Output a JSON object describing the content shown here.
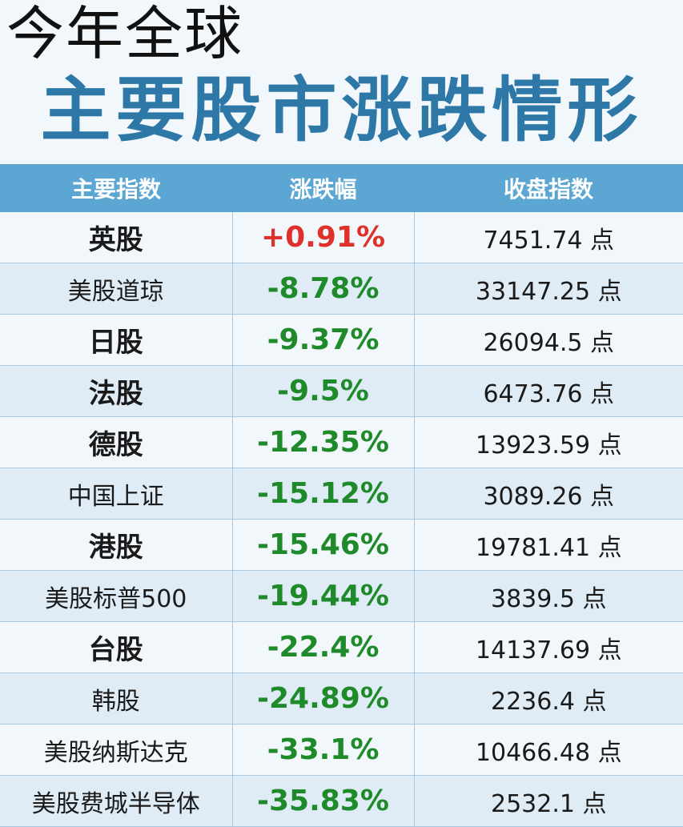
{
  "title": {
    "line1": "今年全球",
    "line2": "主要股市涨跌情形"
  },
  "table": {
    "headers": [
      "主要指数",
      "涨跌幅",
      "收盘指数"
    ],
    "rows": [
      {
        "name": "英股",
        "change": "+0.91%",
        "close": "7451.74 点",
        "direction": "up",
        "emphasis": true
      },
      {
        "name": "美股道琼",
        "change": "-8.78%",
        "close": "33147.25 点",
        "direction": "down",
        "emphasis": false
      },
      {
        "name": "日股",
        "change": "-9.37%",
        "close": "26094.5 点",
        "direction": "down",
        "emphasis": true
      },
      {
        "name": "法股",
        "change": "-9.5%",
        "close": "6473.76 点",
        "direction": "down",
        "emphasis": true
      },
      {
        "name": "德股",
        "change": "-12.35%",
        "close": "13923.59 点",
        "direction": "down",
        "emphasis": true
      },
      {
        "name": "中国上证",
        "change": "-15.12%",
        "close": "3089.26 点",
        "direction": "down",
        "emphasis": false
      },
      {
        "name": "港股",
        "change": "-15.46%",
        "close": "19781.41 点",
        "direction": "down",
        "emphasis": true
      },
      {
        "name": "美股标普500",
        "change": "-19.44%",
        "close": "3839.5 点",
        "direction": "down",
        "emphasis": false
      },
      {
        "name": "台股",
        "change": "-22.4%",
        "close": "14137.69 点",
        "direction": "down",
        "emphasis": true
      },
      {
        "name": "韩股",
        "change": "-24.89%",
        "close": "2236.4 点",
        "direction": "down",
        "emphasis": false
      },
      {
        "name": "美股纳斯达克",
        "change": "-33.1%",
        "close": "10466.48 点",
        "direction": "down",
        "emphasis": false
      },
      {
        "name": "美股费城半导体",
        "change": "-35.83%",
        "close": "2532.1 点",
        "direction": "down",
        "emphasis": false
      }
    ]
  },
  "colors": {
    "title_blue": "#2e78a8",
    "header_bg": "#5ba6d2",
    "up": "#e0302a",
    "down": "#1f8a2a"
  }
}
